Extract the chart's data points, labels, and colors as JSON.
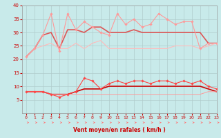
{
  "title": "",
  "xlabel": "Vent moyen/en rafales ( km/h )",
  "ylabel": "",
  "bg_color": "#c8eaea",
  "grid_color": "#b0cccc",
  "xlim": [
    -0.5,
    23
  ],
  "ylim": [
    0,
    40
  ],
  "yticks": [
    5,
    10,
    15,
    20,
    25,
    30,
    35,
    40
  ],
  "xticks": [
    0,
    1,
    2,
    3,
    4,
    5,
    6,
    7,
    8,
    9,
    10,
    11,
    12,
    13,
    14,
    15,
    16,
    17,
    18,
    19,
    20,
    21,
    22,
    23
  ],
  "hours": [
    0,
    1,
    2,
    3,
    4,
    5,
    6,
    7,
    8,
    9,
    10,
    11,
    12,
    13,
    14,
    15,
    16,
    17,
    18,
    19,
    20,
    21,
    22,
    23
  ],
  "series": [
    {
      "values": [
        21,
        24,
        29,
        37,
        23,
        37,
        31,
        34,
        32,
        30,
        29,
        37,
        33,
        35,
        32,
        33,
        37,
        35,
        33,
        34,
        34,
        24,
        26,
        26
      ],
      "color": "#ff9999",
      "lw": 0.8,
      "marker": "D",
      "ms": 1.8,
      "zorder": 3
    },
    {
      "values": [
        21,
        24,
        29,
        30,
        24,
        31,
        31,
        30,
        32,
        32,
        30,
        30,
        30,
        31,
        30,
        30,
        30,
        30,
        30,
        30,
        30,
        30,
        26,
        26
      ],
      "color": "#dd5555",
      "lw": 1.2,
      "marker": null,
      "ms": 0,
      "zorder": 2
    },
    {
      "values": [
        21,
        24,
        25,
        26,
        24,
        24,
        26,
        24,
        26,
        27,
        24,
        24,
        24,
        24,
        24,
        24,
        24,
        24,
        25,
        25,
        25,
        24,
        25,
        26
      ],
      "color": "#ffbbbb",
      "lw": 0.8,
      "marker": null,
      "ms": 0,
      "zorder": 2
    },
    {
      "values": [
        8,
        8,
        8,
        7,
        6,
        7,
        8,
        13,
        12,
        9,
        11,
        12,
        11,
        12,
        12,
        11,
        12,
        12,
        11,
        12,
        11,
        12,
        10,
        9
      ],
      "color": "#ff4444",
      "lw": 0.8,
      "marker": "D",
      "ms": 1.8,
      "zorder": 3
    },
    {
      "values": [
        8,
        8,
        8,
        7,
        7,
        7,
        8,
        9,
        9,
        9,
        10,
        10,
        10,
        10,
        10,
        10,
        10,
        10,
        10,
        10,
        10,
        10,
        9,
        8
      ],
      "color": "#cc0000",
      "lw": 1.2,
      "marker": null,
      "ms": 0,
      "zorder": 2
    },
    {
      "values": [
        8,
        8,
        8,
        7,
        7,
        7,
        7,
        7,
        7,
        7,
        7,
        7,
        7,
        7,
        7,
        7,
        7,
        7,
        7,
        7,
        7,
        7,
        8,
        8
      ],
      "color": "#ff9999",
      "lw": 0.7,
      "marker": null,
      "ms": 0,
      "zorder": 2
    }
  ],
  "arrow_color": "#ff7777",
  "xlabel_color": "#cc0000",
  "tick_color": "#cc0000"
}
